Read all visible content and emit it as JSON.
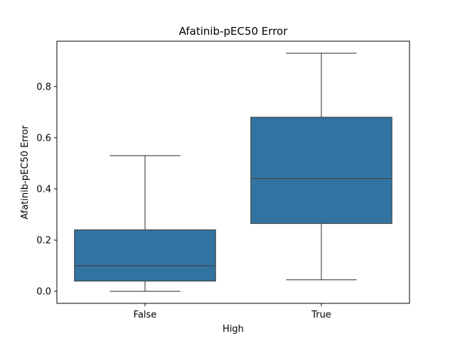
{
  "chart_data": {
    "type": "box",
    "title": "Afatinib-pEC50 Error",
    "xlabel": "High",
    "ylabel": "Afatinib-pEC50 Error",
    "categories": [
      "False",
      "True"
    ],
    "boxes": [
      {
        "category": "False",
        "whisker_low": 0.0,
        "q1": 0.04,
        "median": 0.1,
        "q3": 0.24,
        "whisker_high": 0.53
      },
      {
        "category": "True",
        "whisker_low": 0.045,
        "q1": 0.265,
        "median": 0.44,
        "q3": 0.68,
        "whisker_high": 0.93
      }
    ],
    "ylim": [
      -0.047,
      0.977
    ],
    "yticks": [
      0.0,
      0.2,
      0.4,
      0.6,
      0.8
    ],
    "ytick_labels": [
      "0.0",
      "0.2",
      "0.4",
      "0.6",
      "0.8"
    ],
    "grid": false,
    "box_color": "#3274a1",
    "line_color": "#3f3f3f"
  }
}
